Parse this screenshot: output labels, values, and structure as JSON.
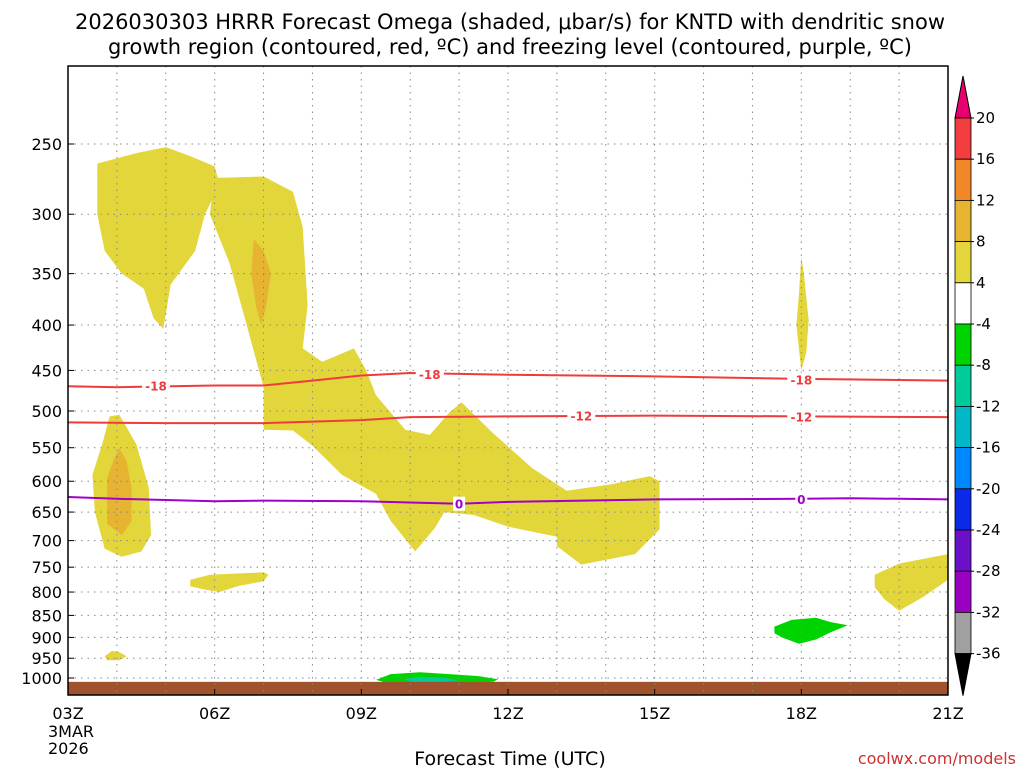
{
  "chart_data": {
    "type": "heatmap",
    "title_line1": "2026030303 HRRR Forecast Omega (shaded, μbar/s) for KNTD with dendritic snow",
    "title_line2": "growth region (contoured, red, ºC) and freezing level (contoured, purple, ºC)",
    "xlabel": "Forecast Time (UTC)",
    "x_ticks": [
      "03Z",
      "06Z",
      "09Z",
      "12Z",
      "15Z",
      "18Z",
      "21Z"
    ],
    "x_ticks_hours": [
      3,
      6,
      9,
      12,
      15,
      18,
      21
    ],
    "x_date_label": [
      "3MAR",
      "2026"
    ],
    "xlim_hours": [
      3,
      21
    ],
    "y_ticks": [
      250,
      300,
      350,
      400,
      450,
      500,
      550,
      600,
      650,
      700,
      750,
      800,
      850,
      900,
      950,
      1000
    ],
    "ylim_hPa": [
      1025,
      200
    ],
    "grid": true,
    "colorbar": {
      "levels": [
        20,
        16,
        12,
        8,
        4,
        -4,
        -8,
        -12,
        -16,
        -20,
        -24,
        -28,
        -32,
        -36
      ],
      "colors": [
        "#e8006e",
        "#f23e3e",
        "#f0882a",
        "#e6b430",
        "#e3d63a",
        "#ffffff",
        "#00d400",
        "#00cc99",
        "#00b8c8",
        "#0088ff",
        "#0a2ae8",
        "#6a10c8",
        "#9a00c0",
        "#a0a0a0",
        "#000000"
      ]
    },
    "contours": [
      {
        "field": "temperature",
        "color": "#ef3b3b",
        "label": "-18",
        "points": [
          [
            3,
            469
          ],
          [
            4,
            470
          ],
          [
            6,
            468
          ],
          [
            7,
            468
          ],
          [
            8,
            462
          ],
          [
            9,
            456
          ],
          [
            10,
            453
          ],
          [
            12,
            455
          ],
          [
            15,
            457
          ],
          [
            18,
            460
          ],
          [
            21,
            462
          ]
        ],
        "label_at": [
          [
            4.8,
            468
          ],
          [
            10.4,
            454
          ],
          [
            18,
            461
          ]
        ]
      },
      {
        "field": "temperature",
        "color": "#ef3b3b",
        "label": "-12",
        "points": [
          [
            3,
            515
          ],
          [
            5,
            516
          ],
          [
            7,
            516
          ],
          [
            9,
            512
          ],
          [
            10,
            508
          ],
          [
            12,
            507
          ],
          [
            15,
            506
          ],
          [
            18,
            507
          ],
          [
            21,
            508
          ]
        ],
        "label_at": [
          [
            13.5,
            506
          ],
          [
            18,
            507
          ]
        ]
      },
      {
        "field": "temperature",
        "color": "#a000c8",
        "label": "0",
        "points": [
          [
            3,
            625
          ],
          [
            4,
            628
          ],
          [
            6,
            632
          ],
          [
            7,
            631
          ],
          [
            9,
            632
          ],
          [
            11,
            636
          ],
          [
            12,
            633
          ],
          [
            15,
            629
          ],
          [
            18,
            628
          ],
          [
            19,
            627
          ],
          [
            21,
            629
          ]
        ],
        "label_at": [
          [
            11,
            636
          ],
          [
            18,
            628
          ]
        ]
      }
    ],
    "shaded_regions": [
      {
        "omega": 6,
        "color": "#e3d63a",
        "points": [
          [
            3.6,
            263
          ],
          [
            4.4,
            256
          ],
          [
            5.0,
            252
          ],
          [
            5.5,
            258
          ],
          [
            6.0,
            265
          ],
          [
            6.1,
            278
          ],
          [
            5.8,
            300
          ],
          [
            5.6,
            330
          ],
          [
            5.1,
            360
          ],
          [
            4.95,
            404
          ],
          [
            4.75,
            393
          ],
          [
            4.55,
            364
          ],
          [
            4.1,
            350
          ],
          [
            3.75,
            330
          ],
          [
            3.6,
            300
          ]
        ]
      },
      {
        "omega": 6,
        "color": "#e3d63a",
        "points": [
          [
            6.0,
            273
          ],
          [
            7.0,
            272
          ],
          [
            7.6,
            283
          ],
          [
            7.8,
            310
          ],
          [
            7.9,
            380
          ],
          [
            7.8,
            425
          ],
          [
            8.2,
            440
          ],
          [
            8.85,
            425
          ],
          [
            9.1,
            450
          ],
          [
            9.3,
            480
          ],
          [
            9.9,
            525
          ],
          [
            10.4,
            532
          ],
          [
            10.8,
            502
          ],
          [
            11.05,
            489
          ],
          [
            11.7,
            530
          ],
          [
            12.5,
            580
          ],
          [
            13.2,
            615
          ],
          [
            14.1,
            605
          ],
          [
            14.9,
            592
          ],
          [
            15.1,
            600
          ],
          [
            15.1,
            680
          ],
          [
            14.6,
            725
          ],
          [
            13.5,
            745
          ],
          [
            13.0,
            710
          ],
          [
            13.0,
            693
          ],
          [
            12.0,
            675
          ],
          [
            11.3,
            655
          ],
          [
            10.7,
            650
          ],
          [
            10.5,
            678
          ],
          [
            10.1,
            720
          ],
          [
            9.6,
            665
          ],
          [
            9.3,
            620
          ],
          [
            8.6,
            590
          ],
          [
            8.0,
            547
          ],
          [
            7.6,
            526
          ],
          [
            7.0,
            525
          ],
          [
            7.0,
            470
          ],
          [
            6.6,
            390
          ],
          [
            6.3,
            340
          ],
          [
            5.9,
            300
          ]
        ]
      },
      {
        "omega": 10,
        "color": "#e6b430",
        "points": [
          [
            6.8,
            320
          ],
          [
            7.0,
            330
          ],
          [
            7.15,
            350
          ],
          [
            7.05,
            382
          ],
          [
            6.95,
            400
          ],
          [
            6.85,
            382
          ],
          [
            6.75,
            350
          ]
        ]
      },
      {
        "omega": 6,
        "color": "#e3d63a",
        "points": [
          [
            3.5,
            590
          ],
          [
            3.7,
            545
          ],
          [
            3.85,
            507
          ],
          [
            4.05,
            505
          ],
          [
            4.4,
            545
          ],
          [
            4.65,
            610
          ],
          [
            4.7,
            690
          ],
          [
            4.5,
            720
          ],
          [
            4.1,
            730
          ],
          [
            3.75,
            715
          ],
          [
            3.55,
            650
          ]
        ]
      },
      {
        "omega": 10,
        "color": "#e6b430",
        "points": [
          [
            3.8,
            595
          ],
          [
            3.95,
            565
          ],
          [
            4.05,
            550
          ],
          [
            4.2,
            570
          ],
          [
            4.3,
            610
          ],
          [
            4.3,
            665
          ],
          [
            4.1,
            690
          ],
          [
            3.8,
            670
          ]
        ]
      },
      {
        "omega": 6,
        "color": "#e3d63a",
        "points": [
          [
            5.5,
            775
          ],
          [
            5.9,
            765
          ],
          [
            7.0,
            760
          ],
          [
            7.1,
            765
          ],
          [
            7.0,
            778
          ],
          [
            6.5,
            787
          ],
          [
            6.1,
            800
          ],
          [
            5.8,
            795
          ],
          [
            5.5,
            788
          ]
        ]
      },
      {
        "omega": 6,
        "color": "#e3d63a",
        "points": [
          [
            3.75,
            945
          ],
          [
            3.9,
            932
          ],
          [
            4.05,
            935
          ],
          [
            4.2,
            945
          ],
          [
            4.05,
            955
          ],
          [
            3.8,
            955
          ]
        ]
      },
      {
        "omega": 6,
        "color": "#e3d63a",
        "points": [
          [
            17.95,
            370
          ],
          [
            18.0,
            335
          ],
          [
            18.05,
            350
          ],
          [
            18.15,
            395
          ],
          [
            18.1,
            430
          ],
          [
            18.0,
            450
          ],
          [
            17.95,
            425
          ],
          [
            17.9,
            400
          ]
        ]
      },
      {
        "omega": 6,
        "color": "#e3d63a",
        "points": [
          [
            19.5,
            765
          ],
          [
            20.0,
            743
          ],
          [
            21.0,
            725
          ],
          [
            21.0,
            775
          ],
          [
            20.5,
            810
          ],
          [
            20.0,
            840
          ],
          [
            19.7,
            815
          ],
          [
            19.5,
            790
          ]
        ]
      },
      {
        "omega": -6,
        "color": "#00d400",
        "points": [
          [
            17.45,
            875
          ],
          [
            17.8,
            860
          ],
          [
            18.3,
            855
          ],
          [
            18.6,
            865
          ],
          [
            18.95,
            872
          ],
          [
            18.6,
            888
          ],
          [
            18.3,
            905
          ],
          [
            17.95,
            915
          ],
          [
            17.6,
            900
          ],
          [
            17.45,
            890
          ]
        ]
      },
      {
        "omega": -6,
        "color": "#00d400",
        "points": [
          [
            9.3,
            1005
          ],
          [
            9.6,
            990
          ],
          [
            10.2,
            985
          ],
          [
            10.8,
            990
          ],
          [
            11.4,
            995
          ],
          [
            11.8,
            1003
          ],
          [
            11.7,
            1010
          ],
          [
            11.0,
            1013
          ],
          [
            10.2,
            1013
          ],
          [
            9.5,
            1012
          ]
        ]
      },
      {
        "omega": -10,
        "color": "#00cc99",
        "points": [
          [
            9.85,
            1004
          ],
          [
            10.2,
            997
          ],
          [
            10.7,
            1000
          ],
          [
            11.0,
            1006
          ],
          [
            10.6,
            1011
          ],
          [
            10.1,
            1011
          ]
        ]
      }
    ],
    "ground": {
      "color": "#a0522d",
      "top_hPa": 1010
    }
  },
  "watermark": "coolwx.com/models"
}
